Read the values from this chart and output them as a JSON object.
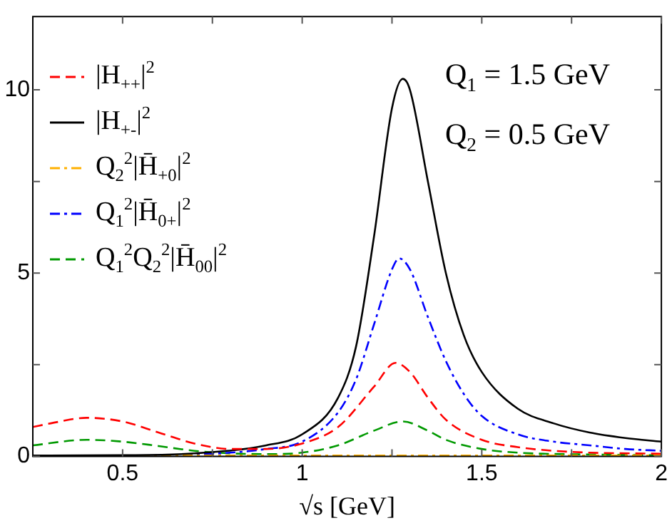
{
  "chart_data": {
    "type": "line",
    "xlabel": "√s [GeV]",
    "xlim": [
      0.25,
      2
    ],
    "ylim": [
      0,
      12
    ],
    "xticks": [
      0.5,
      {
        "value": 0.75,
        "label": null
      },
      1,
      {
        "value": 1.25,
        "label": null
      },
      1.5,
      {
        "value": 1.75,
        "label": null
      },
      2
    ],
    "yticks": [
      0,
      {
        "value": 2.5,
        "label": null
      },
      5,
      {
        "value": 7.5,
        "label": null
      },
      10
    ],
    "grid": false,
    "legend": "top left",
    "marker": "none",
    "annotations": [
      "Q$_{1}$ = 1.5 GeV",
      "Q$_{2}$ = 0.5 GeV"
    ],
    "series": [
      {
        "name": "|H$_{++}$|$^{2}$",
        "color": "#ff0000",
        "line_style": "dashed",
        "x": [
          0.25,
          0.3,
          0.4,
          0.5,
          0.6,
          0.7,
          0.8,
          0.9,
          1.0,
          1.1,
          1.2,
          1.26,
          1.3,
          1.35,
          1.4,
          1.5,
          1.6,
          1.7,
          1.8,
          2.0
        ],
        "values": [
          0.8,
          0.9,
          1.05,
          0.95,
          0.65,
          0.35,
          0.2,
          0.2,
          0.35,
          0.8,
          1.9,
          2.55,
          2.3,
          1.6,
          1.0,
          0.45,
          0.25,
          0.15,
          0.1,
          0.07
        ]
      },
      {
        "name": "|H$_{+-}$|$^{2}$",
        "color": "#000000",
        "line_style": "solid",
        "x": [
          0.25,
          0.5,
          0.7,
          0.9,
          1.0,
          1.1,
          1.15,
          1.2,
          1.25,
          1.28,
          1.3,
          1.35,
          1.4,
          1.45,
          1.5,
          1.6,
          1.7,
          1.8,
          1.9,
          2.0
        ],
        "values": [
          0.02,
          0.03,
          0.08,
          0.3,
          0.6,
          1.6,
          3,
          6,
          9.5,
          10.3,
          10,
          7.5,
          5,
          3.3,
          2.3,
          1.3,
          0.9,
          0.65,
          0.5,
          0.4
        ]
      },
      {
        "name": "Q$_{2}$$^{2}$|H̄$_{+0}$|$^{2}$",
        "color": "#ffb000",
        "line_style": "dashdot",
        "x": [
          0.25,
          1.0,
          1.5,
          2.0
        ],
        "values": [
          0.02,
          0.02,
          0.02,
          0.02
        ]
      },
      {
        "name": "Q$_{1}$$^{2}$|H̄$_{0+}$|$^{2}$",
        "color": "#0000ff",
        "line_style": "dashdot",
        "x": [
          0.25,
          0.5,
          0.7,
          0.9,
          1.0,
          1.1,
          1.15,
          1.2,
          1.25,
          1.27,
          1.3,
          1.35,
          1.4,
          1.45,
          1.5,
          1.6,
          1.7,
          1.8,
          1.9,
          2.0
        ],
        "values": [
          0,
          null,
          0.05,
          0.2,
          0.4,
          1.2,
          2.1,
          3.6,
          5.1,
          5.4,
          5.1,
          3.8,
          2.6,
          1.7,
          1.1,
          0.6,
          0.4,
          0.3,
          0.2,
          0.15
        ]
      },
      {
        "name": "Q$_{1}$$^{2}$Q$_{2}$$^{2}$|H̄$_{00}$|$^{2}$",
        "color": "#009900",
        "line_style": "dashed",
        "x": [
          0.25,
          0.4,
          0.5,
          0.6,
          0.7,
          0.8,
          0.9,
          1.0,
          1.1,
          1.2,
          1.28,
          1.35,
          1.4,
          1.5,
          1.6,
          1.8,
          2.0
        ],
        "values": [
          0.3,
          0.45,
          0.4,
          0.28,
          0.15,
          0.08,
          0.06,
          0.1,
          0.3,
          0.7,
          0.95,
          0.7,
          0.45,
          0.2,
          0.1,
          0.05,
          0.03
        ]
      }
    ]
  }
}
